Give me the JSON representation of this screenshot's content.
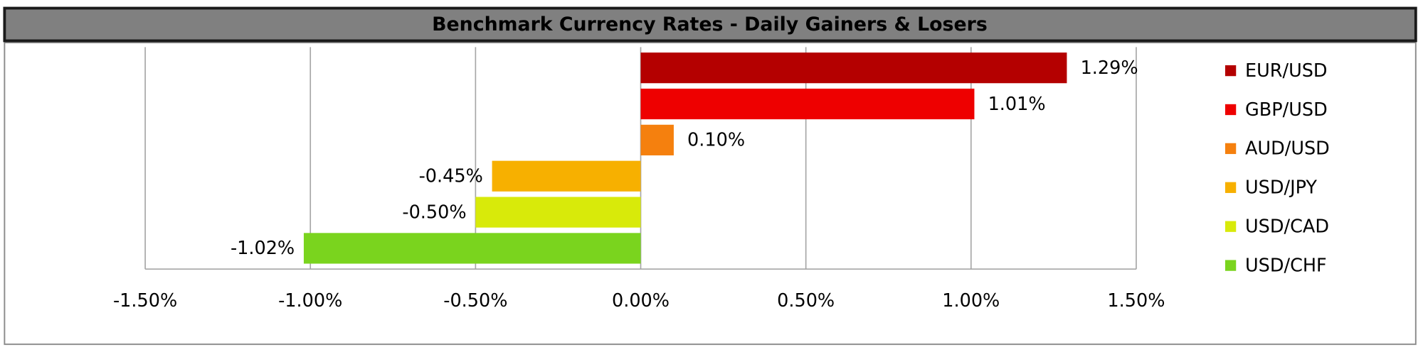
{
  "chart_data": {
    "type": "bar",
    "orientation": "horizontal",
    "title": "Benchmark Currency Rates - Daily Gainers & Losers",
    "series": [
      {
        "name": "EUR/USD",
        "color": "#b40000",
        "values": [
          1.29
        ],
        "value_labels": [
          "1.29%"
        ]
      },
      {
        "name": "GBP/USD",
        "color": "#ee0000",
        "values": [
          1.01
        ],
        "value_labels": [
          "1.01%"
        ]
      },
      {
        "name": "AUD/USD",
        "color": "#f5800e",
        "values": [
          0.1
        ],
        "value_labels": [
          "0.10%"
        ]
      },
      {
        "name": "USD/JPY",
        "color": "#f7b000",
        "values": [
          -0.45
        ],
        "value_labels": [
          "-0.45%"
        ]
      },
      {
        "name": "USD/CAD",
        "color": "#d8ea0a",
        "values": [
          -0.5
        ],
        "value_labels": [
          "-0.50%"
        ]
      },
      {
        "name": "USD/CHF",
        "color": "#7ad41e",
        "values": [
          -1.02
        ],
        "value_labels": [
          "-1.02%"
        ]
      }
    ],
    "xlim": [
      -1.5,
      1.5
    ],
    "xticks": [
      {
        "value": -1.5,
        "label": "-1.50%"
      },
      {
        "value": -1.0,
        "label": "-1.00%"
      },
      {
        "value": -0.5,
        "label": "-0.50%"
      },
      {
        "value": 0,
        "label": "0.00%"
      },
      {
        "value": 0.5,
        "label": "0.50%"
      },
      {
        "value": 1.0,
        "label": "1.00%"
      },
      {
        "value": 1.5,
        "label": "1.50%"
      }
    ],
    "grid": true,
    "legend": "right"
  }
}
